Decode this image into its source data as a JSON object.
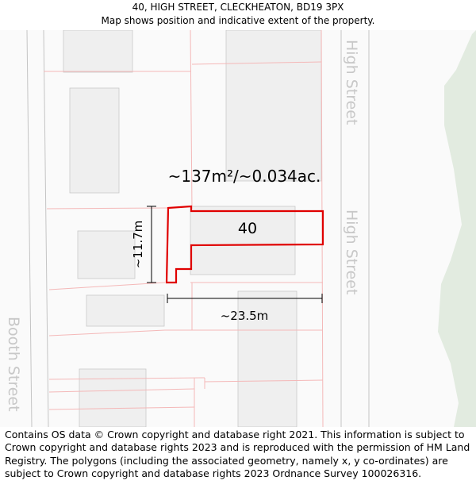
{
  "header": {
    "address": "40, HIGH STREET, CLECKHEATON, BD19 3PX",
    "subtitle": "Map shows position and indicative extent of the property."
  },
  "map": {
    "area_label": "~137m²/~0.034ac.",
    "plot_number": "40",
    "width_label": "~23.5m",
    "height_label": "~11.7m",
    "street_labels": {
      "high_street_upper": "High Street",
      "high_street_lower": "High Street",
      "booth_street": "Booth Street"
    },
    "colors": {
      "property_outline": "#e00000",
      "parcel_lines": "#f4b8b8",
      "buildings": "#efefef",
      "roads": "#fafafa",
      "green_space": "#e2ebe0",
      "street_text": "#c8c8c8"
    }
  },
  "footer": {
    "attribution": "Contains OS data © Crown copyright and database right 2021. This information is subject to Crown copyright and database rights 2023 and is reproduced with the permission of HM Land Registry. The polygons (including the associated geometry, namely x, y co-ordinates) are subject to Crown copyright and database rights 2023 Ordnance Survey 100026316."
  }
}
